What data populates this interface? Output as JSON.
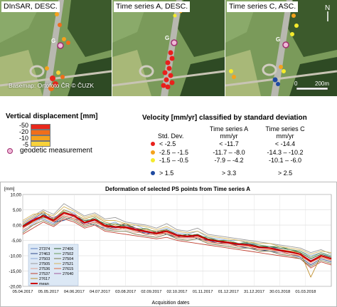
{
  "maps": [
    {
      "title": "DInSAR, DESC.",
      "credit": "Basemap: Ortofoto ČR © ČUZK"
    },
    {
      "title": "Time series A, DESC."
    },
    {
      "title": "Time series C, ASC."
    }
  ],
  "geodetic_marker_letter": "G",
  "scalebar": {
    "zero": "0",
    "end": "200",
    "unit": "m"
  },
  "vertical_legend": {
    "title": "Vertical displacement [mm]",
    "classes": [
      {
        "label": "-50",
        "color": "#e8281c"
      },
      {
        "label": "-20",
        "color": "#f06e1a"
      },
      {
        "label": "-10",
        "color": "#f4a21c"
      },
      {
        "label": "-5",
        "color": "#f8d23a"
      }
    ]
  },
  "geodetic_legend": {
    "label": "geodetic measurement",
    "color": "#f0b8d8"
  },
  "velocity_legend": {
    "title": "Velocity [mm/yr] classified by standard deviation",
    "std_header": "Std. Dev.",
    "col_a_header": "Time series A",
    "col_c_header": "Time series C",
    "unit_label": "mm/yr",
    "rows": [
      {
        "std": "< -2.5",
        "a": "< -11.7",
        "c": "< -14.4",
        "color": "#e8201c"
      },
      {
        "std": "-2.5 – -1.5",
        "a": "-11.7 – -8.0",
        "c": "-14.3 – -10.2",
        "color": "#f4a21c"
      },
      {
        "std": "-1.5 – -0.5",
        "a": "-7.9 – -4.2",
        "c": "-10.1 – -6.0",
        "color": "#f4ea2c"
      },
      {
        "std": "> 1.5",
        "a": "> 3.3",
        "c": "> 2.5",
        "color": "#1f4aa0"
      }
    ]
  },
  "chart_data": {
    "type": "line",
    "title": "Deformation of selected PS points from Time series A",
    "xlabel": "Acquisition dates",
    "ylabel": "[mm]",
    "ylim": [
      -20,
      10
    ],
    "yticks": [
      "10,00",
      "5,00",
      "0,00",
      "-5,00",
      "-10,00",
      "-15,00",
      "-20,00"
    ],
    "yvals": [
      10,
      5,
      0,
      -5,
      -10,
      -15,
      -20
    ],
    "xticks": [
      "05.04.2017",
      "05.05.2017",
      "04.06.2017",
      "04.07.2017",
      "03.08.2017",
      "02.09.2017",
      "02.10.2017",
      "01.11.2017",
      "01.12.2017",
      "31.12.2017",
      "30.01.2018",
      "01.03.2018"
    ],
    "x_start": "2017-04-05",
    "x_end": "2018-03-31",
    "sample_dates": [
      "2017-04-05",
      "2017-04-17",
      "2017-04-29",
      "2017-05-11",
      "2017-05-23",
      "2017-06-04",
      "2017-06-16",
      "2017-06-28",
      "2017-07-10",
      "2017-07-22",
      "2017-08-03",
      "2017-08-15",
      "2017-08-27",
      "2017-09-08",
      "2017-09-20",
      "2017-10-02",
      "2017-10-14",
      "2017-10-26",
      "2017-11-07",
      "2017-11-19",
      "2017-12-01",
      "2017-12-13",
      "2017-12-25",
      "2018-01-06",
      "2018-01-18",
      "2018-01-30",
      "2018-02-11",
      "2018-02-23",
      "2018-03-07",
      "2018-03-19",
      "2018-03-31"
    ],
    "series": [
      {
        "name": "27374",
        "color": "#5b7fc4",
        "values": [
          -1.0,
          1.5,
          2.0,
          0.5,
          3.0,
          2.0,
          1.0,
          0.0,
          -1.0,
          -1.5,
          -1.0,
          -2.0,
          -2.5,
          -3.0,
          -2.0,
          -3.5,
          -4.0,
          -3.5,
          -5.0,
          -5.5,
          -6.0,
          -6.5,
          -6.0,
          -7.5,
          -7.0,
          -8.0,
          -9.0,
          -9.5,
          -12.0,
          -10.0,
          -11.0
        ]
      },
      {
        "name": "27463",
        "color": "#2e4a8c",
        "values": [
          0.0,
          2.0,
          4.0,
          1.0,
          1.5,
          3.0,
          0.0,
          1.0,
          -0.5,
          -1.0,
          0.5,
          -1.5,
          -3.0,
          -2.0,
          -3.0,
          -4.0,
          -3.0,
          -4.5,
          -5.0,
          -6.0,
          -5.5,
          -7.0,
          -7.5,
          -8.0,
          -8.5,
          -9.0,
          -9.5,
          -10.5,
          -13.0,
          -11.0,
          -12.0
        ]
      },
      {
        "name": "27503",
        "color": "#8aa8d8",
        "values": [
          -2.0,
          0.5,
          3.0,
          2.0,
          5.0,
          4.0,
          1.0,
          2.5,
          0.0,
          1.0,
          -1.0,
          0.0,
          -1.5,
          -2.0,
          -1.0,
          -2.5,
          -3.0,
          -2.0,
          -4.0,
          -4.5,
          -5.0,
          -5.0,
          -6.0,
          -6.5,
          -7.0,
          -7.5,
          -8.0,
          -8.5,
          -10.0,
          -9.0,
          -10.5
        ]
      },
      {
        "name": "27505",
        "color": "#9a9a9a",
        "values": [
          1.0,
          3.0,
          5.0,
          3.5,
          7.0,
          5.0,
          3.0,
          4.0,
          2.0,
          2.5,
          1.0,
          0.5,
          0.0,
          -1.0,
          0.5,
          -1.5,
          -2.0,
          -1.0,
          -3.0,
          -3.5,
          -4.0,
          -4.5,
          -5.0,
          -5.5,
          -6.0,
          -6.5,
          -7.0,
          -7.5,
          -9.0,
          -8.0,
          -9.5
        ]
      },
      {
        "name": "27536",
        "color": "#e0a090",
        "values": [
          -1.5,
          0.0,
          2.5,
          1.0,
          3.5,
          2.5,
          0.5,
          1.5,
          -1.0,
          -0.5,
          -1.5,
          -2.5,
          -2.0,
          -3.5,
          -2.5,
          -4.0,
          -4.5,
          -4.0,
          -5.5,
          -6.0,
          -6.5,
          -7.0,
          -7.0,
          -8.0,
          -8.0,
          -9.0,
          -9.5,
          -10.0,
          -12.5,
          -10.5,
          -11.5
        ]
      },
      {
        "name": "27537",
        "color": "#c04030",
        "values": [
          -3.0,
          -1.0,
          1.0,
          -0.5,
          2.0,
          1.0,
          -1.0,
          0.0,
          -2.0,
          -2.5,
          -3.0,
          -3.5,
          -4.0,
          -4.5,
          -4.0,
          -5.0,
          -5.5,
          -6.0,
          -6.5,
          -7.0,
          -7.5,
          -8.0,
          -8.5,
          -9.0,
          -9.5,
          -10.0,
          -10.5,
          -11.0,
          -14.0,
          -12.0,
          -13.0
        ]
      },
      {
        "name": "27617",
        "color": "#c09030",
        "values": [
          0.5,
          2.5,
          4.5,
          2.0,
          5.0,
          3.5,
          2.0,
          3.0,
          1.0,
          0.0,
          0.5,
          -1.0,
          -1.5,
          -2.0,
          -1.5,
          -3.0,
          -3.5,
          -3.0,
          -4.5,
          -5.0,
          -5.5,
          -6.0,
          -6.5,
          -7.0,
          -7.5,
          -8.0,
          -8.5,
          -9.0,
          -17.0,
          -10.0,
          -11.0
        ]
      },
      {
        "name": "27406",
        "color": "#2a5a2a",
        "values": [
          -0.5,
          1.0,
          3.5,
          1.5,
          4.0,
          3.0,
          1.5,
          2.0,
          0.5,
          -0.5,
          0.0,
          -1.0,
          -2.0,
          -2.5,
          -1.5,
          -3.0,
          -3.5,
          -3.0,
          -4.5,
          -5.0,
          -5.5,
          -6.0,
          -6.0,
          -7.0,
          -7.0,
          -7.5,
          -8.0,
          -9.0,
          -11.0,
          -9.5,
          -10.5
        ]
      },
      {
        "name": "27502",
        "color": "#6a9a5a",
        "values": [
          0.0,
          1.5,
          2.5,
          2.0,
          4.5,
          3.0,
          1.0,
          2.5,
          0.0,
          0.5,
          -0.5,
          -1.5,
          -1.0,
          -2.5,
          -2.0,
          -3.5,
          -3.0,
          -3.5,
          -4.0,
          -5.0,
          -5.0,
          -6.0,
          -5.5,
          -6.5,
          -7.0,
          -7.0,
          -8.0,
          -8.5,
          -10.5,
          -9.0,
          -10.0
        ]
      },
      {
        "name": "27504",
        "color": "#7a7a4a",
        "values": [
          -2.5,
          0.0,
          1.5,
          0.0,
          2.5,
          1.5,
          -0.5,
          0.5,
          -1.5,
          -2.0,
          -2.0,
          -3.0,
          -3.5,
          -4.0,
          -3.0,
          -4.5,
          -5.0,
          -4.5,
          -6.0,
          -6.5,
          -7.0,
          -7.5,
          -7.5,
          -8.5,
          -8.5,
          -9.5,
          -10.0,
          -11.0,
          -13.5,
          -11.5,
          -12.5
        ]
      },
      {
        "name": "27521",
        "color": "#d4b45a",
        "values": [
          1.5,
          3.5,
          4.0,
          3.0,
          6.0,
          4.5,
          2.5,
          3.5,
          1.5,
          1.5,
          0.5,
          0.0,
          -0.5,
          -1.5,
          -0.5,
          -2.0,
          -2.5,
          -2.0,
          -3.5,
          -4.0,
          -4.5,
          -5.0,
          -5.5,
          -6.0,
          -6.0,
          -7.0,
          -7.5,
          -8.0,
          -9.5,
          -8.5,
          -9.0
        ]
      },
      {
        "name": "27615",
        "color": "#e06a3a",
        "values": [
          -1.0,
          1.0,
          3.0,
          1.0,
          3.0,
          2.0,
          0.0,
          1.0,
          -0.5,
          -1.5,
          -1.0,
          -2.0,
          -3.0,
          -3.0,
          -2.5,
          -4.0,
          -4.0,
          -4.0,
          -5.5,
          -6.0,
          -6.0,
          -7.0,
          -7.0,
          -8.0,
          -8.0,
          -8.5,
          -9.5,
          -10.0,
          -12.0,
          -10.5,
          -11.5
        ]
      },
      {
        "name": "27640",
        "color": "#a05a9a",
        "values": [
          -0.5,
          2.0,
          3.0,
          2.5,
          4.0,
          3.5,
          0.5,
          1.5,
          0.0,
          -1.0,
          -0.5,
          -1.0,
          -2.5,
          -2.5,
          -2.0,
          -3.0,
          -4.0,
          -3.5,
          -5.0,
          -5.5,
          -6.0,
          -6.0,
          -6.5,
          -7.5,
          -7.5,
          -8.5,
          -9.0,
          -9.5,
          -11.5,
          -10.0,
          -11.0
        ]
      },
      {
        "name": "mean",
        "color": "#cc0000",
        "mean": true,
        "values": [
          -0.5,
          1.5,
          3.0,
          1.5,
          4.0,
          3.0,
          0.8,
          1.8,
          -0.2,
          -0.6,
          -0.7,
          -1.5,
          -2.1,
          -2.7,
          -2.0,
          -3.4,
          -3.7,
          -3.4,
          -4.8,
          -5.3,
          -5.7,
          -6.3,
          -6.5,
          -7.3,
          -7.5,
          -8.2,
          -8.8,
          -9.5,
          -11.9,
          -10.0,
          -11.0
        ]
      }
    ],
    "legend_left": [
      "27374",
      "27463",
      "27503",
      "27505",
      "27536",
      "27537",
      "27617",
      "mean"
    ],
    "legend_right": [
      "27406",
      "27502",
      "27504",
      "27521",
      "27615",
      "27640"
    ]
  }
}
